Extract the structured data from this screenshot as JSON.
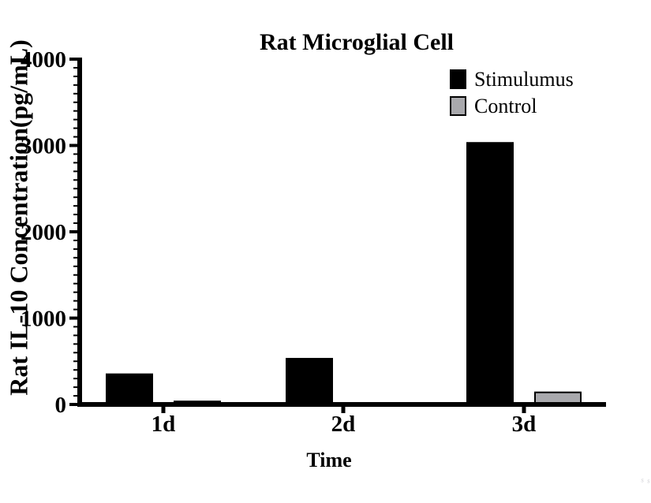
{
  "chart_data": {
    "type": "bar",
    "title": "Rat Microglial Cell",
    "xlabel": "Time",
    "ylabel": "Rat IL-10 Concentration(pg/mL)",
    "categories": [
      "1d",
      "2d",
      "3d"
    ],
    "series": [
      {
        "name": "Stimulumus",
        "color": "#000000",
        "values": [
          350,
          530,
          3030
        ]
      },
      {
        "name": "Control",
        "color": "#a9a9ad",
        "values": [
          35,
          0,
          140
        ]
      }
    ],
    "ylim": [
      0,
      4000
    ],
    "yticks": [
      0,
      1000,
      2000,
      3000,
      4000
    ],
    "minor_tick_step": 100,
    "grid": false,
    "legend_position": "top-right",
    "bar_border_color": "#000000",
    "axis_color": "#000000"
  },
  "watermark": "s s"
}
